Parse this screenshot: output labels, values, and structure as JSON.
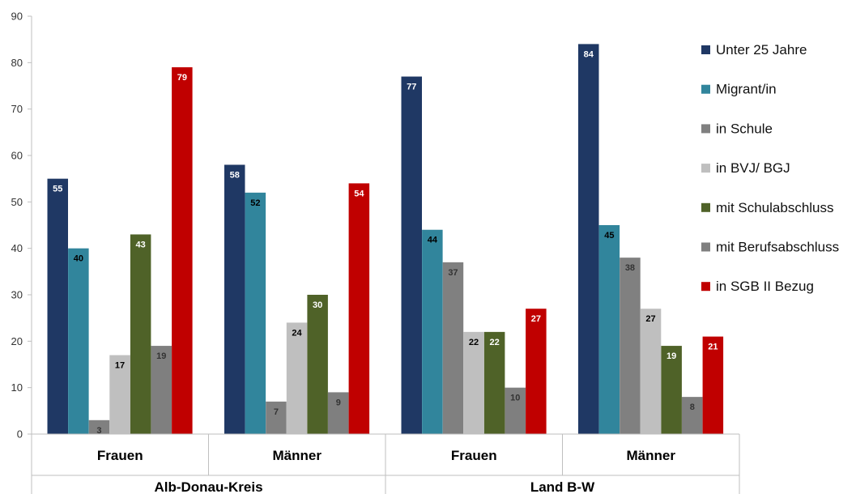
{
  "chart_data": {
    "type": "bar",
    "ylim": [
      0,
      90
    ],
    "yticks": [
      0,
      10,
      20,
      30,
      40,
      50,
      60,
      70,
      80,
      90
    ],
    "grid": false,
    "legend_position": "right",
    "groups": [
      {
        "label": "Alb-Donau-Kreis",
        "categories": [
          "Frauen",
          "Männer"
        ]
      },
      {
        "label": "Land B-W",
        "categories": [
          "Frauen",
          "Männer"
        ]
      }
    ],
    "categories": [
      "Frauen",
      "Männer",
      "Frauen",
      "Männer"
    ],
    "series": [
      {
        "name": "Unter 25 Jahre",
        "color": "#1f3864",
        "label_color": "#ffffff",
        "values": [
          55,
          58,
          77,
          84
        ]
      },
      {
        "name": "Migrant/in",
        "color": "#31859c",
        "label_color": "#000000",
        "values": [
          40,
          52,
          44,
          45
        ]
      },
      {
        "name": "in Schule",
        "color": "#808080",
        "label_color": "#333333",
        "label_weight": "normal",
        "values": [
          3,
          7,
          37,
          38
        ]
      },
      {
        "name": "in BVJ/ BGJ",
        "color": "#bfbfbf",
        "label_color": "#000000",
        "values": [
          17,
          24,
          22,
          27
        ]
      },
      {
        "name": "mit Schulabschluss",
        "color": "#4f6228",
        "label_color": "#ffffff",
        "values": [
          43,
          30,
          22,
          19
        ]
      },
      {
        "name": "mit Berufsabschluss",
        "color": "#7f7f7f",
        "label_color": "#333333",
        "label_weight": "normal",
        "values": [
          19,
          9,
          10,
          8
        ]
      },
      {
        "name": "in SGB II Bezug",
        "color": "#c00000",
        "label_color": "#ffffff",
        "values": [
          79,
          54,
          27,
          21
        ]
      }
    ]
  }
}
